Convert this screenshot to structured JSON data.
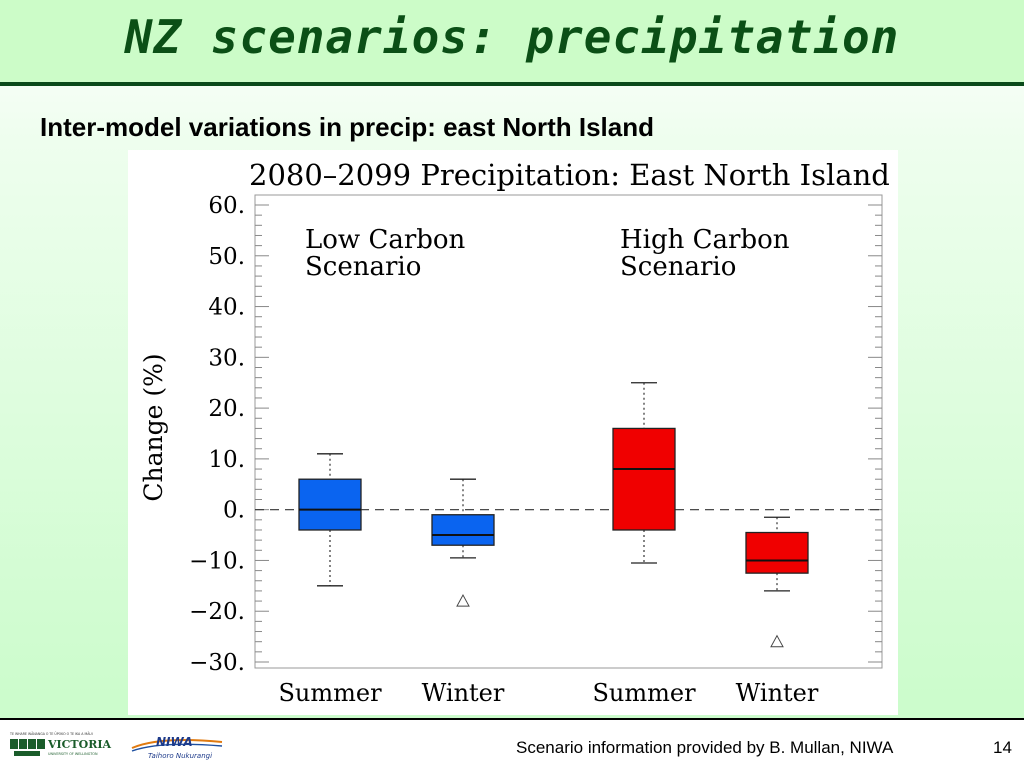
{
  "slide": {
    "title": "NZ scenarios: precipitation",
    "subtitle": "Inter-model variations in precip: east North Island"
  },
  "footer": {
    "credit": "Scenario information provided by B. Mullan, NIWA",
    "page_number": "14",
    "logo_victoria_text": "VICTORIA",
    "logo_victoria_subtext": "UNIVERSITY OF WELLINGTON",
    "logo_victoria_motto": "TE WHARE WĀNANGA O TE ŪPOKO O TE IKA A MĀUI",
    "logo_niwa_text": "NIWA",
    "logo_niwa_subtext": "Taihoro Nukurangi"
  },
  "colors": {
    "title_green": "#0b4f16",
    "title_bar_bg": "#ccfcc8",
    "low_carbon_box": "#0a64f0",
    "high_carbon_box": "#f00000"
  },
  "chart_data": {
    "type": "box",
    "title": "2080–2099 Precipitation: East North Island",
    "xlabel": "",
    "ylabel": "Change (%)",
    "ylim": [
      -30,
      60
    ],
    "yticks": [
      60,
      50,
      40,
      30,
      20,
      10,
      0,
      -10,
      -20,
      -30
    ],
    "ytick_labels": [
      "60.",
      "50.",
      "40.",
      "30.",
      "20.",
      "10.",
      "0.",
      "−10.",
      "−20.",
      "−30."
    ],
    "reference_line": 0,
    "groups": [
      {
        "label": "Low Carbon Scenario",
        "label_lines": [
          "Low Carbon",
          "Scenario"
        ],
        "color": "#0a64f0",
        "boxes": [
          {
            "category": "Summer",
            "whisker_low": -15,
            "q1": -4,
            "median": 0,
            "q3": 6,
            "whisker_high": 11,
            "outliers": []
          },
          {
            "category": "Winter",
            "whisker_low": -9.5,
            "q1": -7,
            "median": -5,
            "q3": -1,
            "whisker_high": 6,
            "outliers": [
              -18
            ]
          }
        ]
      },
      {
        "label": "High Carbon Scenario",
        "label_lines": [
          "High Carbon",
          "Scenario"
        ],
        "color": "#f00000",
        "boxes": [
          {
            "category": "Summer",
            "whisker_low": -10.5,
            "q1": -4,
            "median": 8,
            "q3": 16,
            "whisker_high": 25,
            "outliers": []
          },
          {
            "category": "Winter",
            "whisker_low": -16,
            "q1": -12.5,
            "median": -10,
            "q3": -4.5,
            "whisker_high": -1.5,
            "outliers": [
              -26
            ]
          }
        ]
      }
    ],
    "grid": false
  }
}
